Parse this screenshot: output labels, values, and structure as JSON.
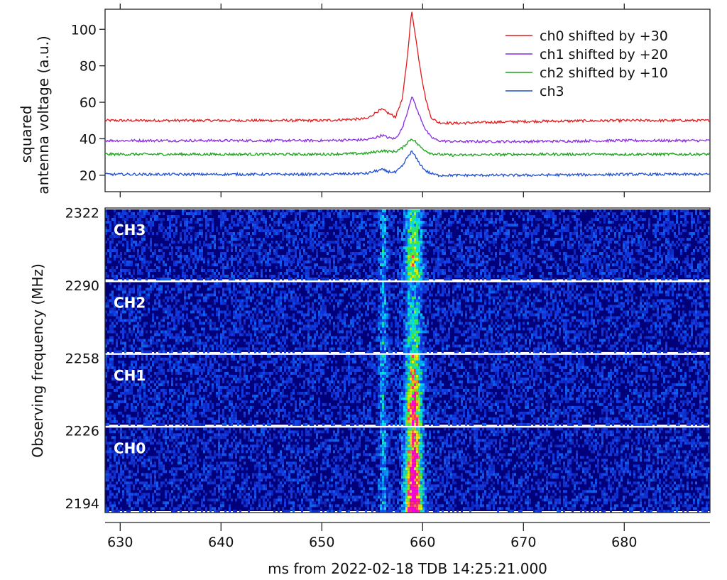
{
  "colors": {
    "ch0": "#e31a1c",
    "ch1": "#8a2be2",
    "ch2": "#1aa31a",
    "ch3": "#1f4fd1",
    "spectrogram_background": "#00007a",
    "spectrogram_peak": "#ff00dd"
  },
  "chart_data": [
    {
      "type": "line",
      "title": "",
      "ylabel_line1": "squared",
      "ylabel_line2": "antenna voltage (a.u.)",
      "xlim": [
        628.5,
        688.5
      ],
      "ylim": [
        11,
        111
      ],
      "yticks": [
        20,
        40,
        60,
        80,
        100
      ],
      "xticks": [
        630,
        640,
        650,
        660,
        670,
        680
      ],
      "grid": false,
      "legend_position": "top-right",
      "series": [
        {
          "name": "ch0 shifted by +30",
          "key": "ch0",
          "x": [
            628.5,
            640,
            650,
            654.5,
            655.5,
            656,
            656.6,
            657.3,
            658,
            658.5,
            658.9,
            659.2,
            659.5,
            659.9,
            660.3,
            660.8,
            661.5,
            663,
            670,
            680,
            688.5
          ],
          "y": [
            50,
            50,
            50,
            51,
            55,
            56,
            54,
            52,
            62,
            86,
            110,
            100,
            88,
            74,
            62,
            52,
            49,
            48.5,
            49.5,
            50,
            50
          ]
        },
        {
          "name": "ch1 shifted by +20",
          "key": "ch1",
          "x": [
            628.5,
            640,
            650,
            654.5,
            655.5,
            656,
            656.6,
            657.3,
            658,
            658.5,
            658.9,
            659.2,
            659.5,
            659.9,
            660.3,
            660.8,
            661.5,
            663,
            670,
            680,
            688.5
          ],
          "y": [
            39,
            39,
            39,
            39.5,
            41,
            42,
            40.5,
            40,
            46,
            55,
            63,
            60,
            55,
            50,
            45,
            41,
            39,
            38.5,
            38.5,
            39,
            39
          ]
        },
        {
          "name": "ch2 shifted by +10",
          "key": "ch2",
          "x": [
            628.5,
            640,
            650,
            654.5,
            655.5,
            656,
            656.6,
            657.3,
            658,
            658.5,
            658.9,
            659.2,
            659.5,
            659.9,
            660.3,
            660.8,
            661.5,
            663,
            670,
            680,
            688.5
          ],
          "y": [
            31.5,
            31.5,
            31.5,
            32,
            33,
            33.5,
            33,
            33,
            35,
            38,
            40,
            39,
            37,
            35,
            33.5,
            32,
            31.5,
            31,
            31.5,
            31.5,
            31.5
          ]
        },
        {
          "name": "ch3",
          "key": "ch3",
          "x": [
            628.5,
            640,
            650,
            654.5,
            655.5,
            656,
            656.6,
            657.3,
            658,
            658.5,
            658.9,
            659.2,
            659.5,
            659.9,
            660.3,
            660.8,
            661.5,
            663,
            670,
            680,
            688.5
          ],
          "y": [
            20.5,
            20.5,
            20.5,
            21,
            22.5,
            23,
            22,
            21.5,
            25,
            30,
            33,
            31,
            28,
            25,
            22.5,
            21,
            20,
            20,
            20,
            20.5,
            20.5
          ]
        }
      ]
    },
    {
      "type": "heatmap",
      "xlabel": "ms from 2022-02-18 TDB 14:25:21.000",
      "ylabel": "Observing frequency (MHz)",
      "xlim": [
        628.5,
        688.5
      ],
      "ylim": [
        2190,
        2324
      ],
      "xticks": [
        630,
        640,
        650,
        660,
        670,
        680
      ],
      "yticks": [
        2194,
        2226,
        2258,
        2290,
        2322
      ],
      "panels": [
        {
          "label": "CH3",
          "freq_range": [
            2292,
            2324
          ],
          "peak_intensity": 0.55
        },
        {
          "label": "CH2",
          "freq_range": [
            2260,
            2292
          ],
          "peak_intensity": 0.4
        },
        {
          "label": "CH1",
          "freq_range": [
            2228,
            2260
          ],
          "peak_intensity": 0.8
        },
        {
          "label": "CH0",
          "freq_range": [
            2190,
            2228
          ],
          "peak_intensity": 1.0
        }
      ],
      "burst": {
        "main_center_ms": 659.0,
        "main_width_ms": 1.6,
        "precursor_center_ms": 656.0,
        "precursor_width_ms": 0.8
      }
    }
  ]
}
